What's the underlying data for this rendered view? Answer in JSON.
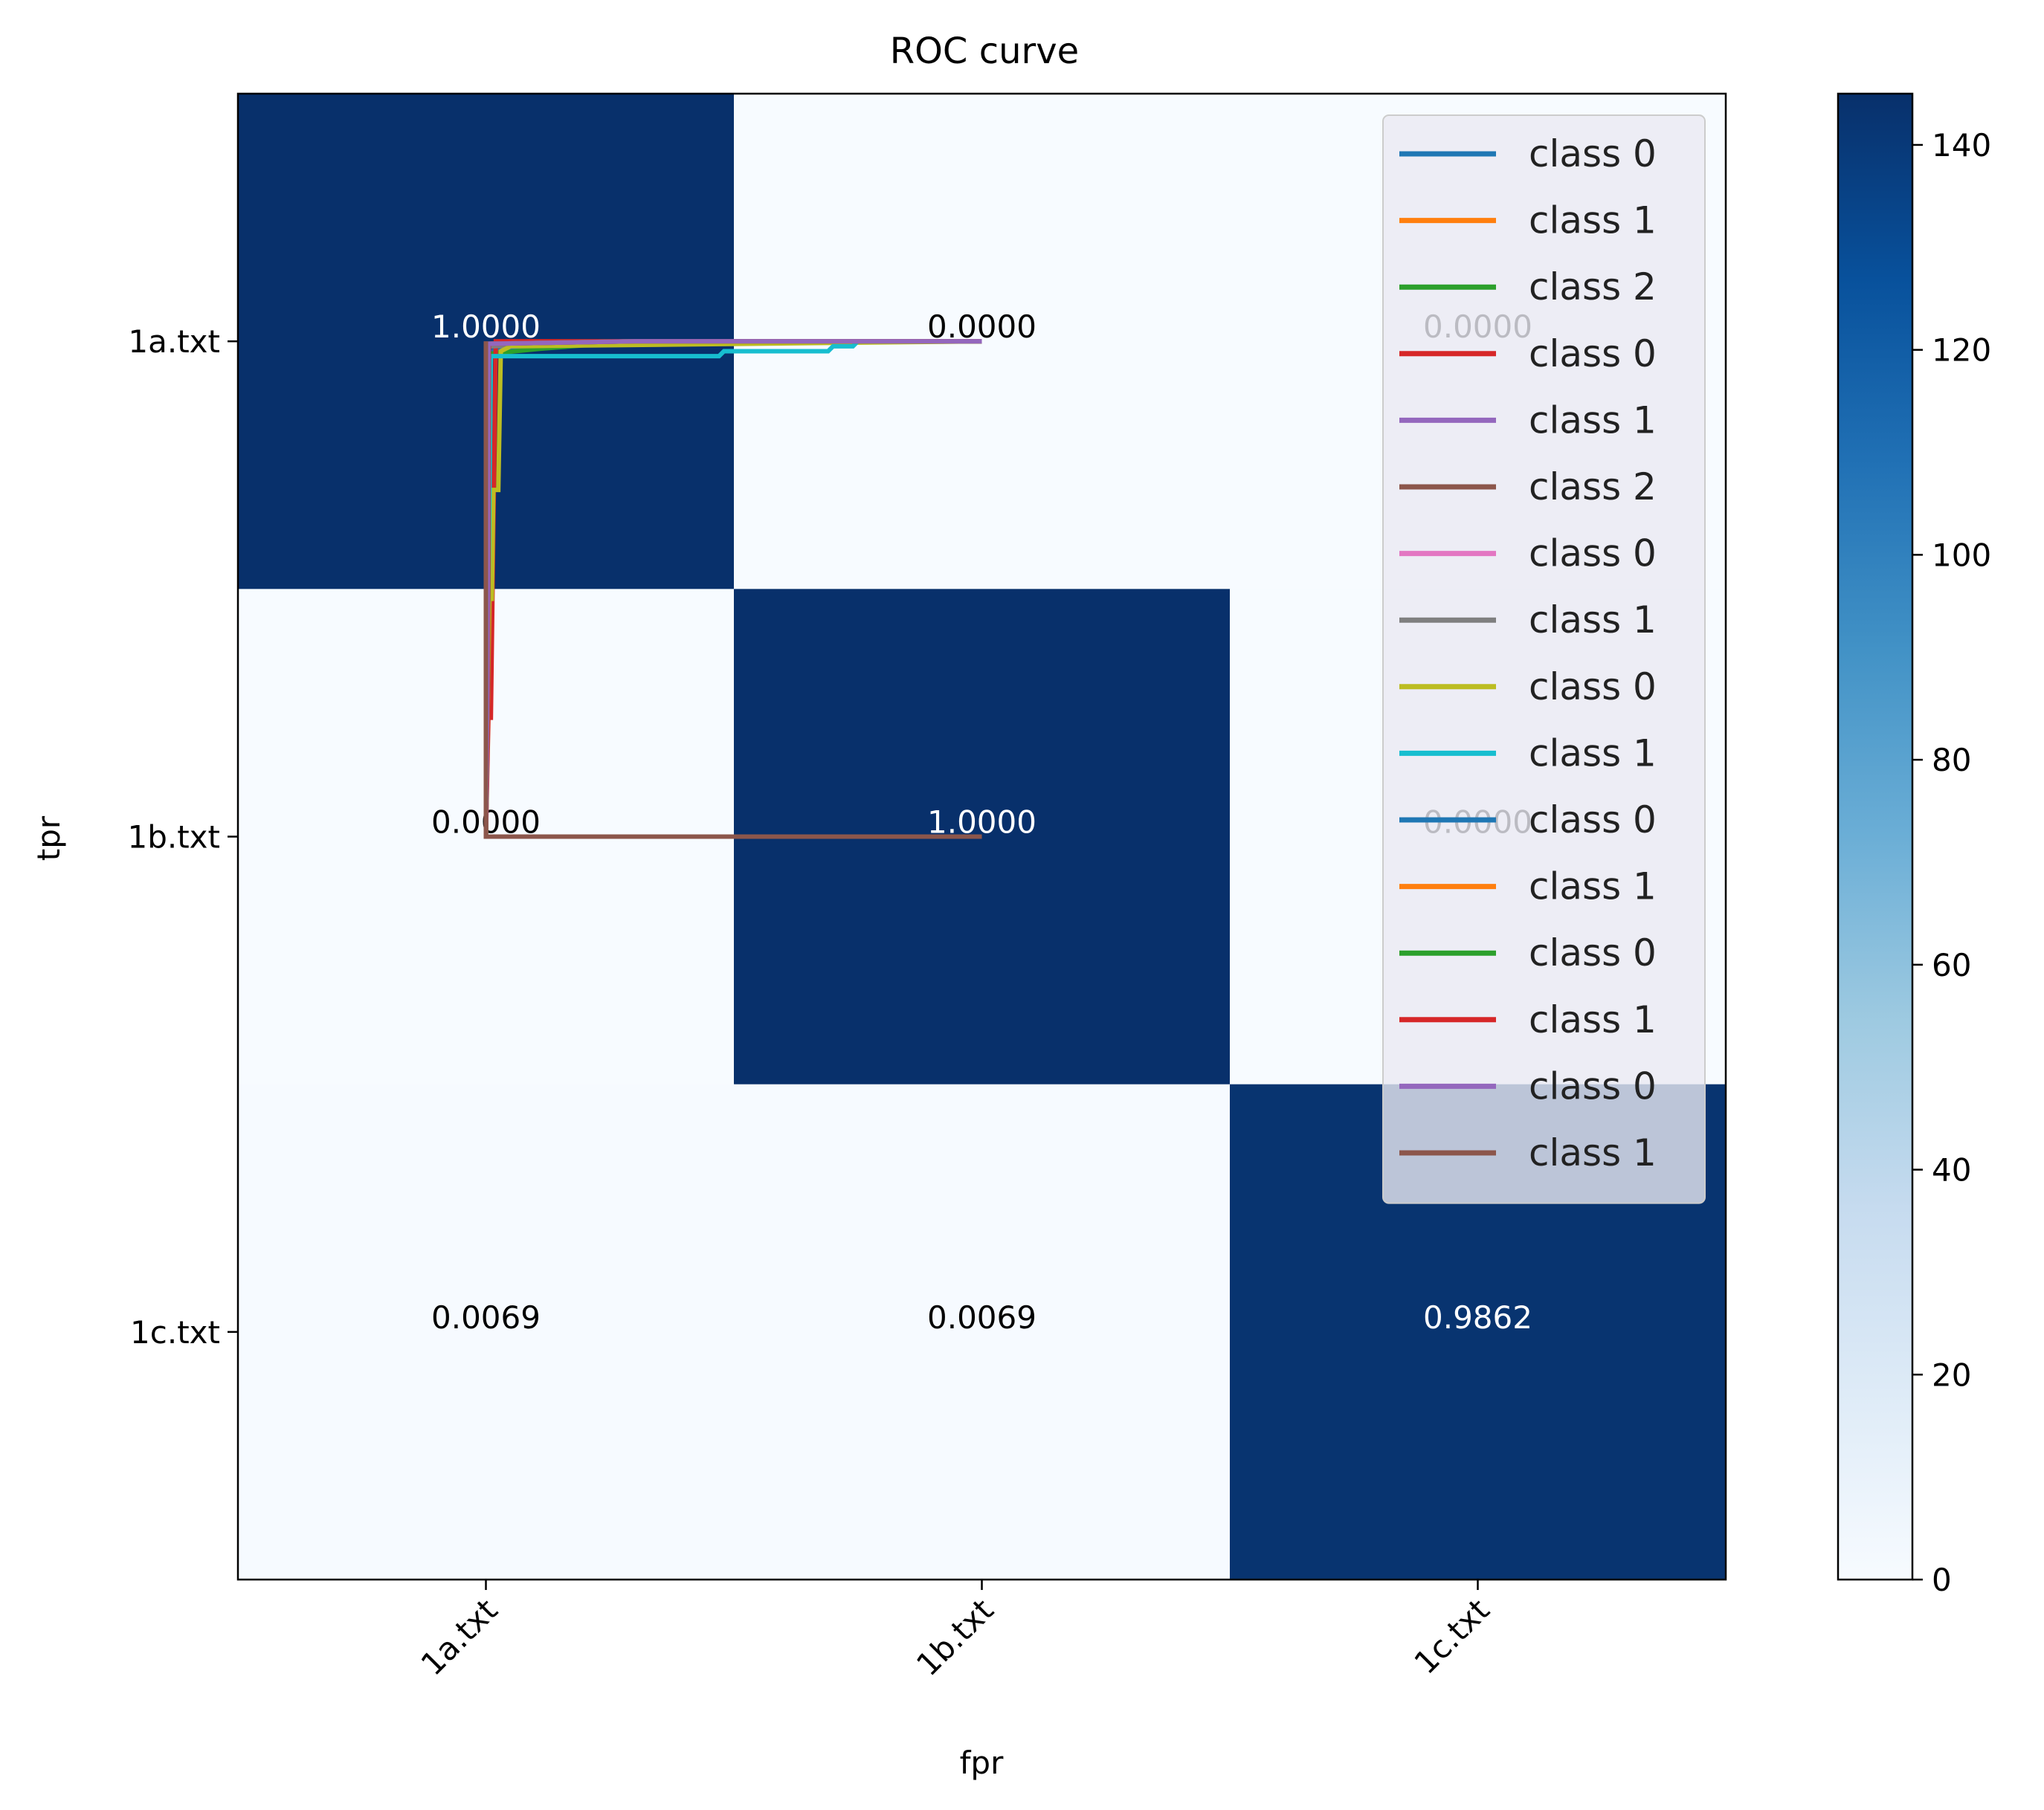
{
  "chart_data": {
    "type": "heatmap",
    "title": "ROC curve",
    "xlabel": "fpr",
    "ylabel": "tpr",
    "x_categories": [
      "1a.txt",
      "1b.txt",
      "1c.txt"
    ],
    "y_categories": [
      "1a.txt",
      "1b.txt",
      "1c.txt"
    ],
    "cell_values": [
      [
        1.0,
        0.0,
        0.0
      ],
      [
        0.0,
        1.0,
        0.0
      ],
      [
        0.0069,
        0.0069,
        0.9862
      ]
    ],
    "cell_labels": [
      [
        "1.0000",
        "0.0000",
        "0.0000"
      ],
      [
        "0.0000",
        "1.0000",
        "0.0000"
      ],
      [
        "0.0069",
        "0.0069",
        "0.9862"
      ]
    ],
    "colormap": "Blues",
    "colorbar": {
      "min": 0,
      "max": 145,
      "ticks": [
        0,
        20,
        40,
        60,
        80,
        100,
        120,
        140
      ]
    },
    "legend_position": "upper-right",
    "overlay_series_data_range": {
      "x": [
        0,
        1
      ],
      "y": [
        0,
        1
      ]
    },
    "overlay_series": [
      {
        "name": "class 0",
        "color": "#1f77b4",
        "x": [
          0,
          0.005,
          0.01,
          0.12,
          0.2,
          0.95,
          1.0
        ],
        "y": [
          0,
          0.35,
          0.98,
          0.99,
          0.995,
          1.0,
          1.0
        ]
      },
      {
        "name": "class 1",
        "color": "#ff7f0e",
        "x": [
          0,
          0.003,
          0.006,
          0.3,
          1.0
        ],
        "y": [
          0,
          0.2,
          0.99,
          1.0,
          1.0
        ]
      },
      {
        "name": "class 2",
        "color": "#2ca02c",
        "x": [
          0,
          0.004,
          0.008,
          0.11,
          0.3,
          1.0
        ],
        "y": [
          0,
          0.25,
          0.975,
          0.985,
          1.0,
          1.0
        ]
      },
      {
        "name": "class 0",
        "color": "#d62728",
        "x": [
          0,
          0.005,
          0.01,
          0.02,
          0.3,
          1.0
        ],
        "y": [
          0,
          0.24,
          0.24,
          1.0,
          1.0,
          1.0
        ]
      },
      {
        "name": "class 1",
        "color": "#9467bd",
        "x": [
          0,
          0.002,
          0.006,
          0.3,
          1.0
        ],
        "y": [
          0,
          0.3,
          0.99,
          1.0,
          1.0
        ]
      },
      {
        "name": "class 2",
        "color": "#8c564b",
        "x": [
          0,
          0.003,
          0.006,
          0.3,
          1.0
        ],
        "y": [
          0,
          0.35,
          0.995,
          1.0,
          1.0
        ]
      },
      {
        "name": "class 0",
        "color": "#e377c2",
        "x": [
          0,
          0.002,
          0.005,
          0.3,
          1.0
        ],
        "y": [
          0,
          0.4,
          0.995,
          1.0,
          1.0
        ]
      },
      {
        "name": "class 1",
        "color": "#7f7f7f",
        "x": [
          0,
          0.004,
          0.006,
          0.3,
          1.0
        ],
        "y": [
          0,
          0.45,
          0.99,
          1.0,
          1.0
        ]
      },
      {
        "name": "class 0",
        "color": "#bcbd22",
        "x": [
          0,
          0.007,
          0.012,
          0.015,
          0.025,
          0.03,
          0.05,
          1.0
        ],
        "y": [
          0,
          0.48,
          0.48,
          0.7,
          0.7,
          0.98,
          0.99,
          1.0
        ]
      },
      {
        "name": "class 1",
        "color": "#17becf",
        "x": [
          0,
          0.01,
          0.47,
          0.48,
          0.69,
          0.7,
          0.74,
          0.75,
          1.0
        ],
        "y": [
          0,
          0.97,
          0.97,
          0.98,
          0.98,
          0.99,
          0.99,
          1.0,
          1.0
        ]
      },
      {
        "name": "class 0",
        "color": "#1f77b4",
        "x": [
          0,
          0.004,
          0.006,
          0.3,
          1.0
        ],
        "y": [
          0,
          0.3,
          0.995,
          1.0,
          1.0
        ]
      },
      {
        "name": "class 1",
        "color": "#ff7f0e",
        "x": [
          0,
          0.004,
          0.006,
          0.3,
          1.0
        ],
        "y": [
          0,
          0.3,
          0.995,
          1.0,
          1.0
        ]
      },
      {
        "name": "class 0",
        "color": "#2ca02c",
        "x": [
          0,
          0.004,
          0.006,
          0.3,
          1.0
        ],
        "y": [
          0,
          0.3,
          0.995,
          1.0,
          1.0
        ]
      },
      {
        "name": "class 1",
        "color": "#d62728",
        "x": [
          0,
          0.004,
          0.006,
          0.3,
          1.0
        ],
        "y": [
          0,
          0.3,
          0.995,
          1.0,
          1.0
        ]
      },
      {
        "name": "class 0",
        "color": "#9467bd",
        "x": [
          0,
          0.003,
          0.005,
          0.3,
          1.0
        ],
        "y": [
          0,
          0.3,
          0.995,
          1.0,
          1.0
        ]
      },
      {
        "name": "class 1",
        "color": "#8c564b",
        "x": [
          0,
          0.0,
          0.0,
          1.0
        ],
        "y": [
          1.0,
          0.6,
          0.0,
          0.0
        ]
      }
    ]
  }
}
